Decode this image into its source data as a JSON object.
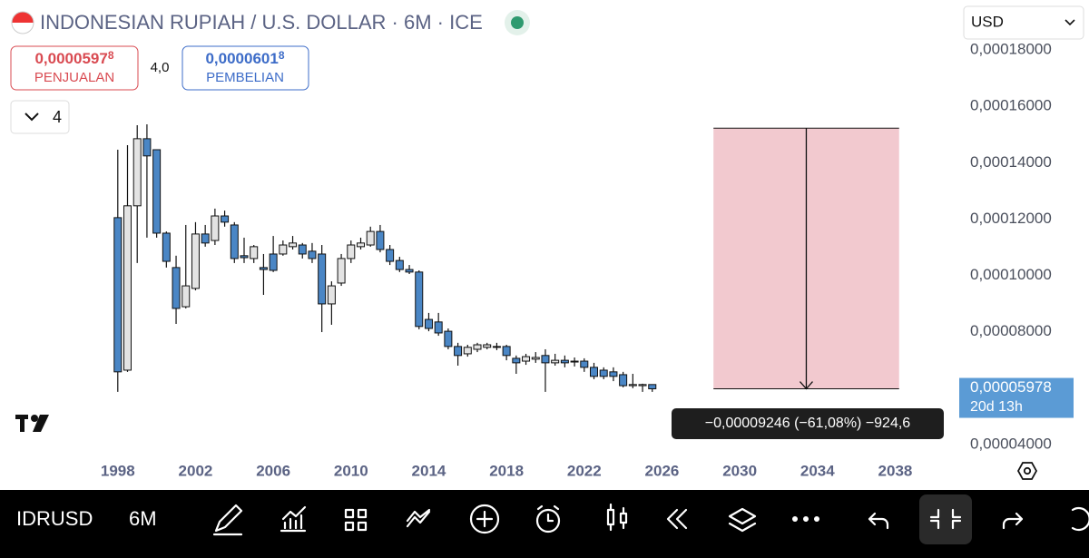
{
  "header": {
    "title": "INDONESIAN RUPIAH / U.S. DOLLAR · 6M · ICE",
    "currency": "USD",
    "collapse_count": "4"
  },
  "sell": {
    "price": "0,0000597",
    "price_last_digit": "8",
    "label": "PENJUALAN"
  },
  "spread": "4,0",
  "buy": {
    "price": "0,0000601",
    "price_last_digit": "8",
    "label": "PEMBELIAN"
  },
  "chart_data": {
    "type": "candlestick",
    "up_color": "#e3e3e3",
    "down_color": "#4a86c5",
    "x": [
      1998,
      1998.5,
      1999,
      1999.5,
      2000,
      2000.5,
      2001,
      2001.5,
      2002,
      2002.5,
      2003,
      2003.5,
      2004,
      2004.5,
      2005,
      2005.5,
      2006,
      2006.5,
      2007,
      2007.5,
      2008,
      2008.5,
      2009,
      2009.5,
      2010,
      2010.5,
      2011,
      2011.5,
      2012,
      2012.5,
      2013,
      2013.5,
      2014,
      2014.5,
      2015,
      2015.5,
      2016,
      2016.5,
      2017,
      2017.5,
      2018,
      2018.5,
      2019,
      2019.5,
      2020,
      2020.5,
      2021,
      2021.5,
      2022,
      2022.5,
      2023,
      2023.5,
      2024,
      2024.5,
      2025,
      2025.5
    ],
    "open": [
      0.0001205,
      6.64e-05,
      0.0001247,
      0.0001485,
      0.0001446,
      0.000115,
      0.0001028,
      8.89e-05,
      9.54e-05,
      0.0001147,
      0.0001124,
      0.0001211,
      0.0001179,
      0.000107,
      0.000106,
      0.0001028,
      0.0001076,
      0.0001076,
      0.0001102,
      0.0001108,
      0.0001086,
      0.0001076,
      8.99e-05,
      9.73e-05,
      0.000106,
      0.0001102,
      0.0001108,
      0.0001156,
      0.0001092,
      0.0001053,
      0.0001021,
      0.0001012,
      8.44e-05,
      8.35e-05,
      8.02e-05,
      7.48e-05,
      7.22e-05,
      7.38e-05,
      7.45e-05,
      7.45e-05,
      7.48e-05,
      7.06e-05,
      6.96e-05,
      7.03e-05,
      7.16e-05,
      6.9e-05,
      6.99e-05,
      6.93e-05,
      6.96e-05,
      6.74e-05,
      6.64e-05,
      6.58e-05,
      6.48e-05,
      6.09e-05,
      6.09e-05,
      6.13e-05
    ],
    "high": [
      0.0001446,
      0.0001462,
      0.0001533,
      0.0001536,
      0.0001446,
      0.0001156,
      0.000107,
      0.0001179,
      0.0001189,
      0.0001179,
      0.0001237,
      0.000123,
      0.0001189,
      0.0001134,
      0.0001108,
      0.0001076,
      0.000114,
      0.0001124,
      0.000114,
      0.0001115,
      0.0001115,
      0.0001108,
      9.79e-05,
      0.0001076,
      0.0001124,
      0.0001134,
      0.0001173,
      0.0001179,
      0.0001108,
      0.0001066,
      0.0001037,
      0.0001018,
      8.67e-05,
      8.67e-05,
      8.12e-05,
      7.61e-05,
      7.54e-05,
      7.61e-05,
      7.61e-05,
      7.61e-05,
      7.54e-05,
      7.16e-05,
      7.22e-05,
      7.28e-05,
      7.38e-05,
      7.22e-05,
      7.16e-05,
      7.09e-05,
      7.06e-05,
      6.9e-05,
      6.74e-05,
      6.74e-05,
      6.58e-05,
      6.51e-05,
      6.16e-05,
      6.13e-05
    ],
    "low": [
      5.87e-05,
      6.58e-05,
      0.0001044,
      0.0001134,
      0.0001134,
      0.0001028,
      8.28e-05,
      8.83e-05,
      9.47e-05,
      0.0001102,
      0.0001108,
      0.0001173,
      0.0001044,
      0.0001044,
      0.0001044,
      9.31e-05,
      0.0001012,
      0.000107,
      0.0001092,
      0.000106,
      0.0001044,
      7.99e-05,
      8.25e-05,
      9.63e-05,
      0.0001044,
      0.0001092,
      0.0001102,
      0.0001082,
      0.0001037,
      0.0001012,
      0.0001005,
      8.09e-05,
      8.02e-05,
      7.86e-05,
      7.38e-05,
      6.8e-05,
      7.12e-05,
      7.28e-05,
      7.38e-05,
      7.35e-05,
      6.99e-05,
      6.51e-05,
      6.83e-05,
      6.9e-05,
      5.87e-05,
      6.8e-05,
      6.74e-05,
      6.77e-05,
      6.58e-05,
      6.32e-05,
      6.32e-05,
      6.25e-05,
      6.03e-05,
      6e-05,
      5.87e-05,
      5.87e-05
    ],
    "close": [
      6.58e-05,
      0.0001247,
      0.0001485,
      0.0001424,
      0.000115,
      0.000105,
      8.83e-05,
      9.63e-05,
      0.0001147,
      0.0001115,
      0.0001211,
      0.0001189,
      0.000106,
      0.0001063,
      0.0001102,
      0.0001021,
      0.0001018,
      0.0001108,
      0.0001115,
      0.0001076,
      0.000106,
      8.99e-05,
      9.63e-05,
      0.000106,
      0.0001108,
      0.0001115,
      0.0001156,
      0.0001092,
      0.000105,
      0.0001021,
      0.0001012,
      8.19e-05,
      8.12e-05,
      7.96e-05,
      7.48e-05,
      7.16e-05,
      7.45e-05,
      7.54e-05,
      7.54e-05,
      7.48e-05,
      7.16e-05,
      6.9e-05,
      7.12e-05,
      7.09e-05,
      6.9e-05,
      6.99e-05,
      6.9e-05,
      6.96e-05,
      6.74e-05,
      6.42e-05,
      6.42e-05,
      6.42e-05,
      6.09e-05,
      6.13e-05,
      6.13e-05,
      5.978e-05
    ],
    "xlim": [
      1992.5,
      2040.5
    ],
    "xticks": [
      1998,
      2002,
      2006,
      2010,
      2014,
      2018,
      2022,
      2026,
      2030,
      2034,
      2038
    ],
    "ylim": [
      4e-05,
      0.00018
    ],
    "yticks": [
      {
        "value": 4e-05,
        "label": "0,00004000"
      },
      {
        "value": 8e-05,
        "label": "0,00008000"
      },
      {
        "value": 0.0001,
        "label": "0,00010000"
      },
      {
        "value": 0.00012,
        "label": "0,00012000"
      },
      {
        "value": 0.00014,
        "label": "0,00014000"
      },
      {
        "value": 0.00016,
        "label": "0,00016000"
      },
      {
        "value": 0.00018,
        "label": "0,00018000"
      }
    ],
    "last_price": {
      "value": 5.978e-05,
      "label": "0,00005978",
      "countdown": "20d 13h",
      "color": "#5b9bd5"
    },
    "measure": {
      "start": 0.00015224,
      "end": 5.978e-05,
      "x_start": 2028.65,
      "x_end": 2038.2,
      "color": "#f2c9cf",
      "label": "−0,00009246 (−61,08%) −924,6"
    }
  },
  "toolbar": {
    "symbol": "IDRUSD",
    "interval": "6M"
  }
}
